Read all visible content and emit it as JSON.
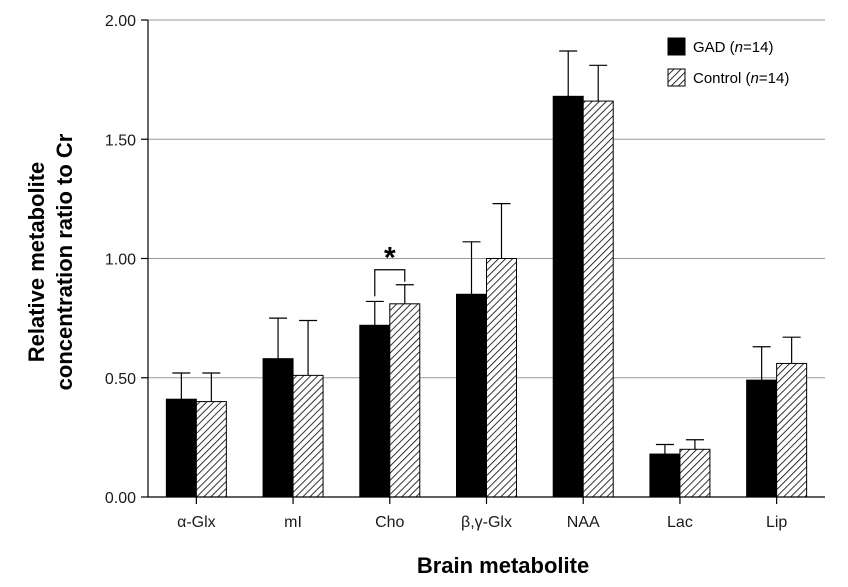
{
  "chart_data": {
    "type": "bar",
    "title": "",
    "xlabel": "Brain metabolite",
    "ylabel_line1": "Relative metabolite",
    "ylabel_line2": "concentration  ratio to Cr",
    "ylim": [
      0,
      2.0
    ],
    "yticks": [
      "0.00",
      "0.50",
      "1.00",
      "1.50",
      "2.00"
    ],
    "ytick_values": [
      0,
      0.5,
      1.0,
      1.5,
      2.0
    ],
    "grid": true,
    "legend_position": "top-right",
    "categories": [
      "α-Glx",
      "mI",
      "Cho",
      "β,γ-Glx",
      "NAA",
      "Lac",
      "Lip"
    ],
    "series": [
      {
        "name": "GAD (n=14)",
        "legend_prefix": "GAD (",
        "legend_italic": "n",
        "legend_suffix": "=14)",
        "fill": "solid",
        "color": "#000000",
        "values": [
          0.41,
          0.58,
          0.72,
          0.85,
          1.68,
          0.18,
          0.49
        ],
        "errors": [
          0.11,
          0.17,
          0.1,
          0.22,
          0.19,
          0.04,
          0.14
        ]
      },
      {
        "name": "Control (n=14)",
        "legend_prefix": "Control (",
        "legend_italic": "n",
        "legend_suffix": "=14)",
        "fill": "hatched",
        "color": "#ffffff",
        "values": [
          0.4,
          0.51,
          0.81,
          1.0,
          1.66,
          0.2,
          0.56
        ],
        "errors": [
          0.12,
          0.23,
          0.08,
          0.23,
          0.15,
          0.04,
          0.11
        ]
      }
    ],
    "annotations": [
      {
        "text": "*",
        "category": "Cho",
        "meaning": "significant difference"
      }
    ]
  }
}
